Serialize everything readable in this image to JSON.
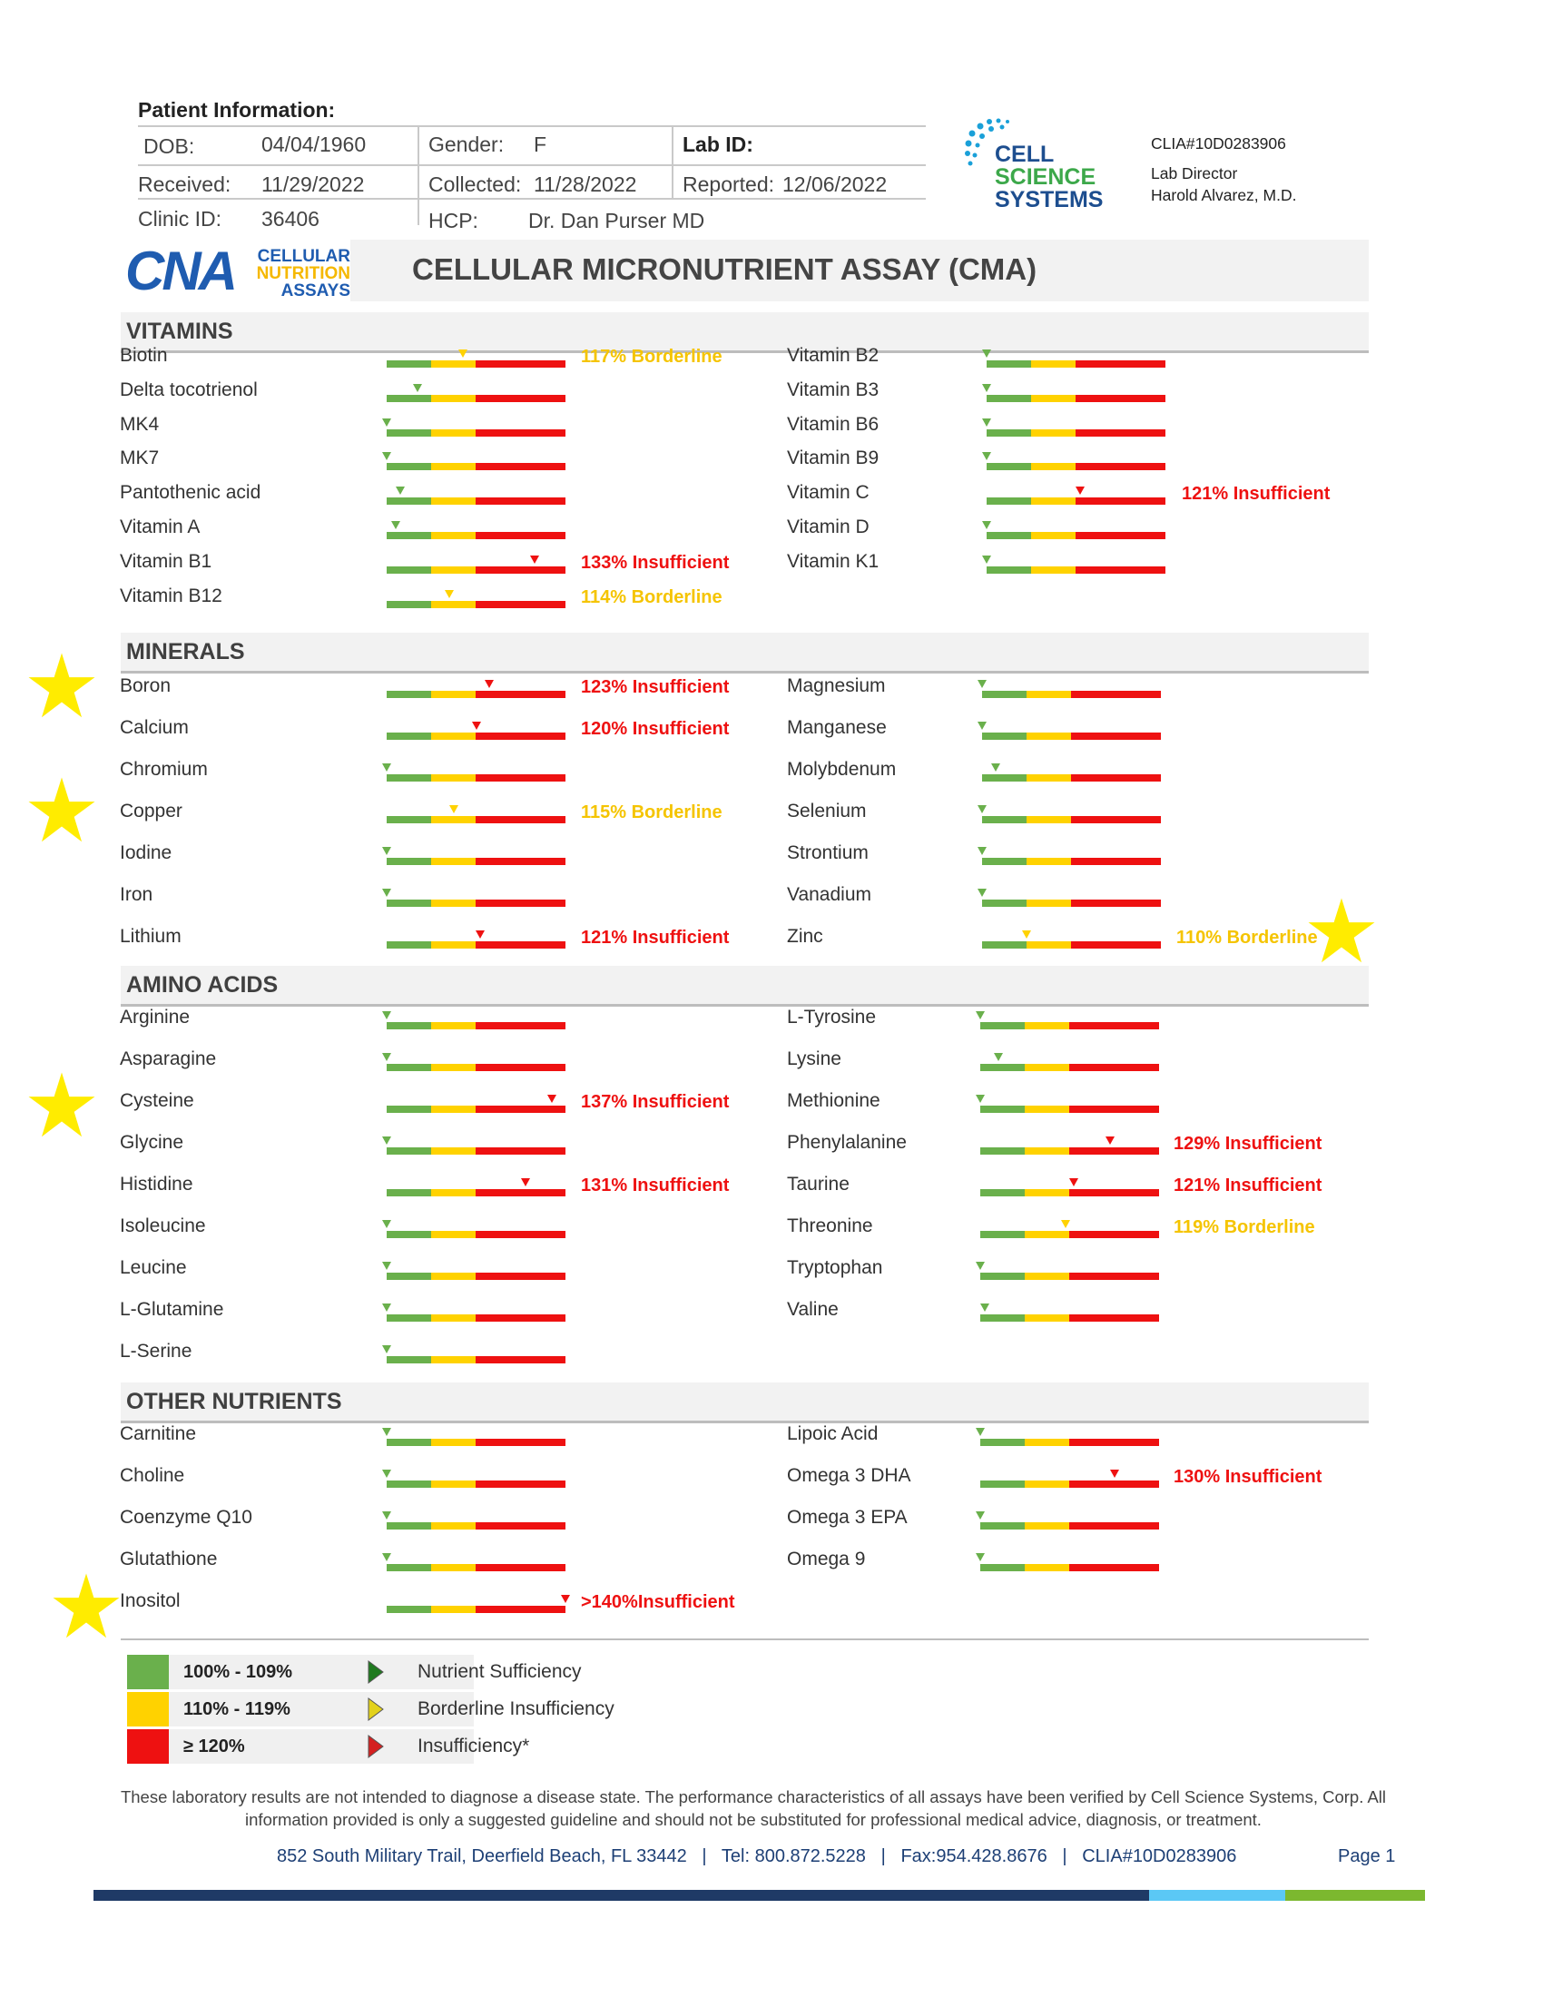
{
  "patient": {
    "heading": "Patient Information:",
    "dob_label": "DOB:",
    "dob": "04/04/1960",
    "gender_label": "Gender:",
    "gender": "F",
    "lab_id_label": "Lab ID:",
    "received_label": "Received:",
    "received": "11/29/2022",
    "collected_label": "Collected:",
    "collected": "11/28/2022",
    "reported_label": "Reported:",
    "reported": "12/06/2022",
    "clinic_label": "Clinic ID:",
    "clinic": "36406",
    "hcp_label": "HCP:",
    "hcp": "Dr. Dan Purser MD"
  },
  "lab": {
    "logo_line1": "CELL",
    "logo_line2": "SCIENCE",
    "logo_line3": "SYSTEMS",
    "clia": "CLIA#10D0283906",
    "director_label": "Lab Director",
    "director": "Harold Alvarez, M.D."
  },
  "brand": {
    "mark": "CNA",
    "line1": "CELLULAR",
    "line2": "NUTRITION",
    "line3": "ASSAYS"
  },
  "title": "CELLULAR MICRONUTRIENT ASSAY (CMA)",
  "colors": {
    "green": "#6ab04c",
    "yellow": "#ffd200",
    "red": "#ee1111",
    "star": "#ffec00"
  },
  "sections": [
    {
      "title": "VITAMINS",
      "items": [
        {
          "name": "Biotin",
          "value": 117,
          "status": "117% Borderline",
          "level": "yellow"
        },
        {
          "name": "Delta tocotrienol",
          "value": 107
        },
        {
          "name": "MK4",
          "value": 100
        },
        {
          "name": "MK7",
          "value": 100
        },
        {
          "name": "Pantothenic acid",
          "value": 103
        },
        {
          "name": "Vitamin A",
          "value": 102
        },
        {
          "name": "Vitamin B1",
          "value": 133,
          "status": "133% Insufficient",
          "level": "red"
        },
        {
          "name": "Vitamin B12",
          "value": 114,
          "status": "114% Borderline",
          "level": "yellow"
        },
        {
          "name": "Vitamin B2",
          "value": 100
        },
        {
          "name": "Vitamin B3",
          "value": 100
        },
        {
          "name": "Vitamin B6",
          "value": 100
        },
        {
          "name": "Vitamin B9",
          "value": 100
        },
        {
          "name": "Vitamin C",
          "value": 121,
          "status": "121% Insufficient",
          "level": "red"
        },
        {
          "name": "Vitamin D",
          "value": 100
        },
        {
          "name": "Vitamin K1",
          "value": 100
        }
      ]
    },
    {
      "title": "MINERALS",
      "items": [
        {
          "name": "Boron",
          "value": 123,
          "status": "123% Insufficient",
          "level": "red",
          "starred": true
        },
        {
          "name": "Calcium",
          "value": 120,
          "status": "120% Insufficient",
          "level": "red"
        },
        {
          "name": "Chromium",
          "value": 100
        },
        {
          "name": "Copper",
          "value": 115,
          "status": "115% Borderline",
          "level": "yellow",
          "starred": true
        },
        {
          "name": "Iodine",
          "value": 100
        },
        {
          "name": "Iron",
          "value": 100
        },
        {
          "name": "Lithium",
          "value": 121,
          "status": "121% Insufficient",
          "level": "red"
        },
        {
          "name": "Magnesium",
          "value": 100
        },
        {
          "name": "Manganese",
          "value": 100
        },
        {
          "name": "Molybdenum",
          "value": 103
        },
        {
          "name": "Selenium",
          "value": 100
        },
        {
          "name": "Strontium",
          "value": 100
        },
        {
          "name": "Vanadium",
          "value": 100
        },
        {
          "name": "Zinc",
          "value": 110,
          "status": "110% Borderline",
          "level": "yellow",
          "starred": true
        }
      ]
    },
    {
      "title": "AMINO ACIDS",
      "items": [
        {
          "name": "Arginine",
          "value": 100
        },
        {
          "name": "Asparagine",
          "value": 100
        },
        {
          "name": "Cysteine",
          "value": 137,
          "status": "137% Insufficient",
          "level": "red",
          "starred": true
        },
        {
          "name": "Glycine",
          "value": 100
        },
        {
          "name": "Histidine",
          "value": 131,
          "status": "131% Insufficient",
          "level": "red"
        },
        {
          "name": "Isoleucine",
          "value": 100
        },
        {
          "name": "Leucine",
          "value": 100
        },
        {
          "name": "L-Glutamine",
          "value": 100
        },
        {
          "name": "L-Serine",
          "value": 100
        },
        {
          "name": "L-Tyrosine",
          "value": 100
        },
        {
          "name": "Lysine",
          "value": 104
        },
        {
          "name": "Methionine",
          "value": 100
        },
        {
          "name": "Phenylalanine",
          "value": 129,
          "status": "129% Insufficient",
          "level": "red"
        },
        {
          "name": "Taurine",
          "value": 121,
          "status": "121% Insufficient",
          "level": "red"
        },
        {
          "name": "Threonine",
          "value": 119,
          "status": "119% Borderline",
          "level": "yellow"
        },
        {
          "name": "Tryptophan",
          "value": 100
        },
        {
          "name": "Valine",
          "value": 101
        }
      ]
    },
    {
      "title": "OTHER NUTRIENTS",
      "items": [
        {
          "name": "Carnitine",
          "value": 100
        },
        {
          "name": "Choline",
          "value": 100
        },
        {
          "name": "Coenzyme Q10",
          "value": 100
        },
        {
          "name": "Glutathione",
          "value": 100
        },
        {
          "name": "Inositol",
          "value": 140,
          "status": ">140%Insufficient",
          "level": "red",
          "starred": true
        },
        {
          "name": "Lipoic Acid",
          "value": 100
        },
        {
          "name": "Omega 3 DHA",
          "value": 130,
          "status": "130% Insufficient",
          "level": "red"
        },
        {
          "name": "Omega 3 EPA",
          "value": 100
        },
        {
          "name": "Omega 9",
          "value": 100
        }
      ]
    }
  ],
  "legend": [
    {
      "range": "100% - 109%",
      "desc": "Nutrient Sufficiency",
      "color": "#6ab04c",
      "arrow": "#1f7a1f"
    },
    {
      "range": "110% - 119%",
      "desc": "Borderline Insufficiency",
      "color": "#ffd200",
      "arrow": "#e3d21c"
    },
    {
      "range": "≥ 120%",
      "desc": "Insufficiency*",
      "color": "#ee1111",
      "arrow": "#d42020"
    }
  ],
  "disclaimer": "These laboratory results are not intended to diagnose a disease state.  The performance characteristics of all assays have been verified by Cell Science Systems, Corp. All information provided is only a suggested guideline and should not be substituted for professional medical advice, diagnosis, or treatment.",
  "footer": {
    "address": "852 South Military Trail, Deerfield Beach, FL 33442   |   Tel: 800.872.5228   |   Fax:954.428.8676   |   CLIA#10D0283906",
    "page": "Page 1"
  }
}
